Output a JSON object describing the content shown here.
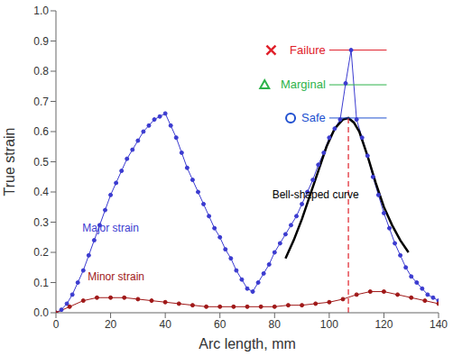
{
  "chart_data": {
    "type": "line",
    "xlabel": "Arc length, mm",
    "ylabel": "True strain",
    "xlim": [
      0,
      140
    ],
    "xticks": [
      0,
      20,
      40,
      60,
      80,
      100,
      120,
      140
    ],
    "ylim": [
      0,
      1.0
    ],
    "yticks": [
      {
        "value": 0,
        "label": "0.0"
      },
      {
        "value": 0.1,
        "label": "0.1"
      },
      {
        "value": 0.2,
        "label": "0.2"
      },
      {
        "value": 0.3,
        "label": "0.3"
      },
      {
        "value": 0.4,
        "label": "0.4"
      },
      {
        "value": 0.5,
        "label": "0.5"
      },
      {
        "value": 0.6,
        "label": "0.6"
      },
      {
        "value": 0.7,
        "label": "0.7"
      },
      {
        "value": 0.8,
        "label": "0.8"
      },
      {
        "value": 0.9,
        "label": "0.9"
      },
      {
        "value": 1.0,
        "label": "1.0"
      }
    ],
    "grid": false,
    "series": [
      {
        "name": "Major strain",
        "color": "#3b3bd0",
        "marker": "circle",
        "line_style": "solid",
        "label_at": [
          20,
          0.28
        ],
        "x": [
          0,
          2,
          4,
          6,
          8,
          10,
          12,
          14,
          16,
          18,
          20,
          22,
          24,
          26,
          28,
          30,
          32,
          34,
          36,
          38,
          40,
          42,
          44,
          46,
          48,
          50,
          52,
          54,
          56,
          58,
          60,
          62,
          64,
          66,
          68,
          70,
          72,
          74,
          76,
          78,
          80,
          82,
          84,
          86,
          88,
          90,
          92,
          94,
          96,
          98,
          100,
          102,
          104,
          106,
          108,
          110,
          112,
          114,
          116,
          118,
          120,
          122,
          124,
          126,
          128,
          130,
          132,
          134,
          136,
          138,
          140
        ],
        "values": [
          0.0,
          0.01,
          0.03,
          0.06,
          0.1,
          0.14,
          0.19,
          0.24,
          0.29,
          0.34,
          0.39,
          0.43,
          0.47,
          0.51,
          0.54,
          0.57,
          0.6,
          0.62,
          0.64,
          0.65,
          0.66,
          0.62,
          0.58,
          0.53,
          0.48,
          0.44,
          0.4,
          0.36,
          0.32,
          0.28,
          0.25,
          0.21,
          0.18,
          0.14,
          0.11,
          0.08,
          0.07,
          0.1,
          0.13,
          0.16,
          0.2,
          0.23,
          0.26,
          0.29,
          0.32,
          0.36,
          0.4,
          0.44,
          0.49,
          0.53,
          0.58,
          0.61,
          0.64,
          0.76,
          0.87,
          0.64,
          0.58,
          0.52,
          0.45,
          0.39,
          0.33,
          0.28,
          0.23,
          0.19,
          0.15,
          0.12,
          0.1,
          0.08,
          0.06,
          0.05,
          0.04
        ]
      },
      {
        "name": "Minor strain",
        "color": "#a01818",
        "marker": "circle",
        "line_style": "solid",
        "label_at": [
          22,
          0.12
        ],
        "x": [
          0,
          5,
          10,
          15,
          20,
          25,
          30,
          35,
          40,
          45,
          50,
          55,
          60,
          65,
          70,
          75,
          80,
          85,
          90,
          95,
          100,
          105,
          110,
          115,
          120,
          125,
          130,
          135,
          140
        ],
        "values": [
          0.0,
          0.02,
          0.04,
          0.05,
          0.05,
          0.05,
          0.045,
          0.04,
          0.035,
          0.03,
          0.025,
          0.02,
          0.02,
          0.02,
          0.02,
          0.02,
          0.02,
          0.025,
          0.025,
          0.03,
          0.035,
          0.045,
          0.06,
          0.07,
          0.07,
          0.06,
          0.05,
          0.04,
          0.03
        ]
      },
      {
        "name": "Bell-shaped curve",
        "color": "#000000",
        "marker": "none",
        "line_style": "solid",
        "label_at": [
          95,
          0.39
        ],
        "x": [
          84,
          87,
          90,
          93,
          96,
          99,
          102,
          105,
          107,
          109,
          111,
          114,
          117,
          120,
          123,
          126,
          129
        ],
        "values": [
          0.18,
          0.24,
          0.31,
          0.39,
          0.47,
          0.55,
          0.61,
          0.64,
          0.645,
          0.63,
          0.6,
          0.52,
          0.43,
          0.35,
          0.29,
          0.24,
          0.2
        ]
      }
    ],
    "levels": [
      {
        "text": "Failure",
        "y": 0.87,
        "x_start": 100,
        "x_end": 121,
        "color": "#e0202a",
        "marker": "cross"
      },
      {
        "text": "Marginal",
        "y": 0.755,
        "x_start": 100,
        "x_end": 121,
        "color": "#2db34a",
        "marker": "triangle"
      },
      {
        "text": "Safe",
        "y": 0.645,
        "x_start": 100,
        "x_end": 121,
        "color": "#2050d0",
        "marker": "circle"
      }
    ],
    "vline": {
      "x": 107,
      "y_start": 0,
      "y_end": 0.645,
      "color": "#e0202a",
      "line_style": "dashed"
    }
  }
}
